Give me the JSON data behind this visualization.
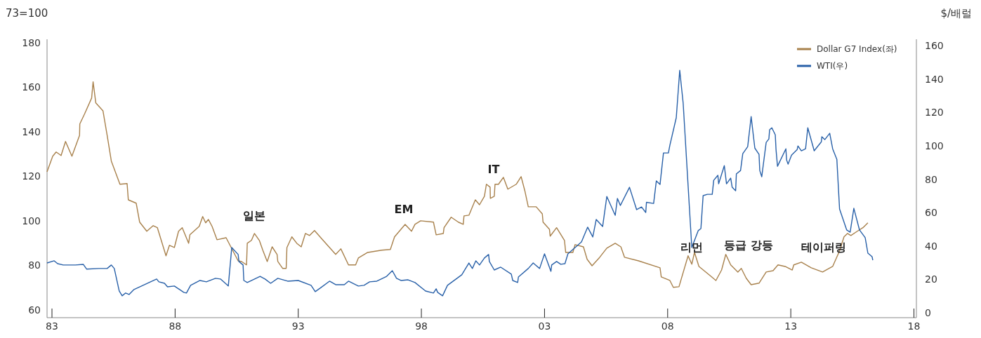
{
  "chart_data": {
    "type": "line",
    "ylabel": "73=100",
    "y2label": "$/배럴",
    "legend": "top right",
    "xlim": [
      1982.8,
      2018.1
    ],
    "xticks": [
      {
        "value": 1983,
        "label": "83"
      },
      {
        "value": 1988,
        "label": "88"
      },
      {
        "value": 1993,
        "label": "93"
      },
      {
        "value": 1998,
        "label": "98"
      },
      {
        "value": 2003,
        "label": "03"
      },
      {
        "value": 2008,
        "label": "08"
      },
      {
        "value": 2013,
        "label": "13"
      },
      {
        "value": 2018,
        "label": "18"
      }
    ],
    "ylim": [
      56.5,
      181.5
    ],
    "yticks": [
      60,
      80,
      100,
      120,
      140,
      160,
      180
    ],
    "y2lim": [
      -3,
      164
    ],
    "y2ticks": [
      0,
      20,
      40,
      60,
      80,
      100,
      120,
      140,
      160
    ],
    "series": [
      {
        "name": "Dollar G7 Index(좌)",
        "color": "#a8814c",
        "x": [
          1982.8,
          1983.03,
          1983.17,
          1983.37,
          1983.55,
          1983.81,
          1984.12,
          1984.13,
          1984.32,
          1984.61,
          1984.67,
          1984.78,
          1985.07,
          1985.24,
          1985.41,
          1985.76,
          1986.05,
          1986.1,
          1986.42,
          1986.56,
          1986.85,
          1987.11,
          1987.28,
          1987.63,
          1987.77,
          1987.97,
          1988.14,
          1988.29,
          1988.55,
          1988.6,
          1988.98,
          1989.12,
          1989.24,
          1989.35,
          1989.5,
          1989.7,
          1990.07,
          1990.56,
          1990.7,
          1990.9,
          1990.93,
          1991.1,
          1991.22,
          1991.42,
          1991.56,
          1991.74,
          1991.94,
          1992.14,
          1992.17,
          1992.37,
          1992.51,
          1992.54,
          1992.74,
          1992.94,
          1993.12,
          1993.29,
          1993.46,
          1993.66,
          1994.01,
          1994.52,
          1994.73,
          1995.04,
          1995.33,
          1995.44,
          1995.82,
          1996.39,
          1996.74,
          1996.91,
          1997.34,
          1997.6,
          1997.74,
          1997.97,
          1998.49,
          1998.6,
          1998.89,
          1998.92,
          1999.21,
          1999.5,
          1999.7,
          1999.73,
          1999.93,
          2000.19,
          2000.36,
          2000.56,
          2000.64,
          2000.79,
          2000.8,
          2000.96,
          2000.99,
          2001.13,
          2001.33,
          2001.51,
          2001.85,
          2002.05,
          2002.2,
          2002.34,
          2002.66,
          2002.91,
          2002.94,
          2003.2,
          2003.23,
          2003.49,
          2003.81,
          2003.86,
          2004.15,
          2004.24,
          2004.58,
          2004.73,
          2004.93,
          2005.24,
          2005.53,
          2005.87,
          2006.1,
          2006.25,
          2006.82,
          2007.69,
          2007.74,
          2008.09,
          2008.23,
          2008.46,
          2008.83,
          2008.98,
          2009.09,
          2009.27,
          2009.61,
          2009.96,
          2010.19,
          2010.36,
          2010.56,
          2010.85,
          2010.99,
          2011.19,
          2011.39,
          2011.71,
          2012.0,
          2012.28,
          2012.48,
          2012.77,
          2013.06,
          2013.12,
          2013.43,
          2013.83,
          2014.29,
          2014.7,
          2014.98,
          2015.16,
          2015.3,
          2015.44,
          2015.7,
          2015.93,
          2016.13
        ],
        "values": [
          122.0,
          129.0,
          130.9,
          129.3,
          135.6,
          129.0,
          138.4,
          143.5,
          147.9,
          155.1,
          162.4,
          152.9,
          149.4,
          138.4,
          126.8,
          116.4,
          116.7,
          109.4,
          107.9,
          99.4,
          95.3,
          97.8,
          96.9,
          84.3,
          89.0,
          88.0,
          95.3,
          96.9,
          89.9,
          93.7,
          97.5,
          101.9,
          99.1,
          100.6,
          97.5,
          91.5,
          92.4,
          82.0,
          81.7,
          80.2,
          89.9,
          91.2,
          94.3,
          91.2,
          86.8,
          81.7,
          88.3,
          84.9,
          81.7,
          78.6,
          78.6,
          88.0,
          92.8,
          89.9,
          88.3,
          94.3,
          93.4,
          95.6,
          91.2,
          84.9,
          87.4,
          80.2,
          80.2,
          83.3,
          85.8,
          86.8,
          87.1,
          92.8,
          98.4,
          95.3,
          98.4,
          100.0,
          99.4,
          93.7,
          94.3,
          96.9,
          101.6,
          99.4,
          98.4,
          102.2,
          102.5,
          109.4,
          107.2,
          111.0,
          116.4,
          115.1,
          110.1,
          111.0,
          116.4,
          116.4,
          119.5,
          114.2,
          116.4,
          119.8,
          113.5,
          106.3,
          106.3,
          103.1,
          99.4,
          96.2,
          93.1,
          96.9,
          91.2,
          85.8,
          85.8,
          89.3,
          88.3,
          82.7,
          79.8,
          83.6,
          87.7,
          89.9,
          88.3,
          83.6,
          82.0,
          78.9,
          74.8,
          73.2,
          70.1,
          70.4,
          84.3,
          80.5,
          85.8,
          79.5,
          76.4,
          73.2,
          77.9,
          84.9,
          80.2,
          77.0,
          78.6,
          74.2,
          71.3,
          72.0,
          77.0,
          77.6,
          80.2,
          79.5,
          77.9,
          80.2,
          81.4,
          78.9,
          77.0,
          79.5,
          86.5,
          92.8,
          94.3,
          93.4,
          95.3,
          96.9,
          99.1
        ]
      },
      {
        "name": "WTI(우)",
        "color": "#2860a8",
        "axis": "y2",
        "x": [
          1982.8,
          1983.09,
          1983.23,
          1983.46,
          1983.95,
          1984.27,
          1984.41,
          1984.9,
          1985.24,
          1985.41,
          1985.53,
          1985.73,
          1985.85,
          1985.99,
          1986.13,
          1986.33,
          1986.82,
          1987.25,
          1987.34,
          1987.57,
          1987.69,
          1987.97,
          1988.35,
          1988.46,
          1988.63,
          1989.01,
          1989.27,
          1989.64,
          1989.84,
          1990.16,
          1990.3,
          1990.56,
          1990.59,
          1990.76,
          1990.79,
          1990.93,
          1991.45,
          1991.65,
          1991.88,
          1992.17,
          1992.57,
          1993.0,
          1993.52,
          1993.69,
          1993.89,
          1994.27,
          1994.52,
          1994.87,
          1995.04,
          1995.44,
          1995.67,
          1995.9,
          1996.19,
          1996.59,
          1996.82,
          1996.99,
          1997.17,
          1997.46,
          1997.74,
          1998.17,
          1998.49,
          1998.6,
          1998.66,
          1998.86,
          1999.06,
          1999.64,
          1999.93,
          2000.07,
          2000.21,
          2000.36,
          2000.56,
          2000.73,
          2000.76,
          2000.96,
          2001.22,
          2001.65,
          2001.71,
          2001.91,
          2001.94,
          2002.34,
          2002.54,
          2002.8,
          2003.0,
          2003.26,
          2003.29,
          2003.49,
          2003.66,
          2003.83,
          2003.95,
          2004.5,
          2004.75,
          2004.96,
          2005.1,
          2005.36,
          2005.53,
          2005.87,
          2005.96,
          2006.08,
          2006.45,
          2006.74,
          2006.94,
          2007.11,
          2007.14,
          2007.43,
          2007.54,
          2007.69,
          2007.83,
          2008.03,
          2008.09,
          2008.35,
          2008.49,
          2008.63,
          2008.98,
          2009.24,
          2009.35,
          2009.44,
          2009.61,
          2009.81,
          2009.87,
          2010.04,
          2010.07,
          2010.3,
          2010.39,
          2010.56,
          2010.62,
          2010.76,
          2010.79,
          2010.96,
          2011.05,
          2011.25,
          2011.39,
          2011.54,
          2011.71,
          2011.74,
          2011.82,
          2012.0,
          2012.11,
          2012.14,
          2012.23,
          2012.37,
          2012.4,
          2012.46,
          2012.8,
          2012.83,
          2012.89,
          2013.03,
          2013.26,
          2013.29,
          2013.43,
          2013.6,
          2013.69,
          2013.95,
          2014.24,
          2014.26,
          2014.38,
          2014.58,
          2014.7,
          2014.87,
          2014.98,
          2015.27,
          2015.41,
          2015.56,
          2015.79,
          2016.02,
          2016.13,
          2016.3,
          2016.33
        ],
        "values": [
          29.8,
          31.1,
          29.4,
          28.6,
          28.6,
          29.0,
          26.1,
          26.5,
          26.5,
          28.6,
          26.5,
          13.0,
          10.1,
          11.8,
          10.9,
          13.9,
          17.2,
          20.2,
          18.5,
          17.6,
          15.5,
          16.0,
          12.2,
          11.8,
          16.4,
          19.3,
          18.5,
          20.6,
          20.2,
          16.0,
          39.1,
          34.9,
          30.7,
          28.6,
          19.3,
          18.1,
          21.8,
          20.2,
          17.6,
          20.6,
          18.9,
          19.3,
          16.4,
          12.6,
          14.7,
          18.9,
          16.8,
          16.8,
          18.9,
          16.0,
          16.4,
          18.5,
          18.9,
          21.8,
          25.2,
          20.6,
          19.3,
          19.7,
          18.1,
          13.0,
          11.8,
          14.3,
          12.2,
          10.1,
          16.4,
          22.7,
          29.8,
          26.5,
          31.1,
          28.6,
          32.8,
          34.9,
          30.7,
          25.6,
          27.3,
          23.1,
          19.3,
          18.1,
          21.4,
          26.5,
          29.8,
          26.5,
          35.3,
          24.8,
          28.6,
          30.7,
          29.0,
          29.4,
          35.3,
          42.4,
          51.3,
          45.4,
          55.9,
          51.7,
          69.7,
          58.4,
          68.5,
          64.3,
          75.2,
          61.8,
          63.4,
          60.1,
          66.2,
          65.5,
          79.0,
          76.9,
          95.8,
          95.8,
          100.4,
          117.0,
          145.4,
          125.6,
          39.1,
          49.2,
          50.4,
          70.2,
          71.0,
          71.0,
          79.4,
          82.4,
          77.3,
          88.2,
          77.3,
          80.7,
          75.2,
          73.1,
          83.2,
          85.3,
          95.4,
          99.6,
          117.6,
          98.7,
          95.0,
          85.3,
          81.5,
          102.1,
          104.2,
          109.7,
          110.9,
          106.7,
          97.9,
          87.8,
          98.3,
          91.6,
          89.1,
          94.5,
          97.9,
          100.0,
          97.1,
          98.3,
          110.9,
          97.1,
          102.5,
          105.5,
          103.8,
          107.6,
          98.3,
          92.0,
          62.2,
          49.6,
          48.3,
          62.6,
          49.6,
          45.0,
          35.7,
          33.6,
          31.5
        ]
      }
    ],
    "annotations": [
      "일본",
      "EM",
      "IT",
      "리먼",
      "등급 강등",
      "테이퍼링"
    ]
  }
}
